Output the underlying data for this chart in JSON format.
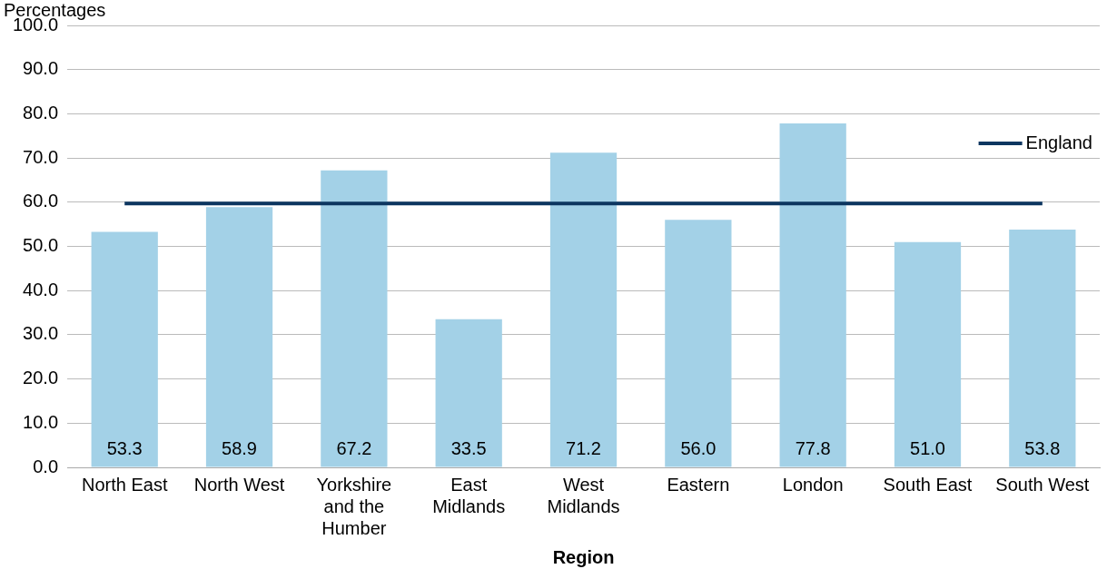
{
  "chart_data": {
    "type": "bar",
    "xlabel": "Region",
    "ylabel": "Percentages",
    "categories": [
      "North East",
      "North West",
      "Yorkshire and the Humber",
      "East Midlands",
      "West Midlands",
      "Eastern",
      "London",
      "South East",
      "South West"
    ],
    "series": [
      {
        "color": "#a3d1e7",
        "values": [
          53.3,
          58.9,
          67.2,
          33.5,
          71.2,
          56.0,
          77.8,
          51.0,
          53.8
        ],
        "value_labels": [
          "53.3",
          "58.9",
          "67.2",
          "33.5",
          "71.2",
          "56.0",
          "77.8",
          "51.0",
          "53.8"
        ]
      },
      {
        "type": "line",
        "name": "England",
        "color": "#0d3660",
        "values": [
          59.7,
          59.7,
          59.7,
          59.7,
          59.7,
          59.7,
          59.7,
          59.7,
          59.7
        ]
      }
    ],
    "ylim": [
      0,
      100
    ],
    "yticks": [
      {
        "value": 0,
        "label": "0.0"
      },
      {
        "value": 10,
        "label": "10.0"
      },
      {
        "value": 20,
        "label": "20.0"
      },
      {
        "value": 30,
        "label": "30.0"
      },
      {
        "value": 40,
        "label": "40.0"
      },
      {
        "value": 50,
        "label": "50.0"
      },
      {
        "value": 60,
        "label": "60.0"
      },
      {
        "value": 70,
        "label": "70.0"
      },
      {
        "value": 80,
        "label": "80.0"
      },
      {
        "value": 90,
        "label": "90.0"
      },
      {
        "value": 100,
        "label": "100.0"
      }
    ],
    "grid": "y",
    "legend": "top right",
    "marker": "none",
    "line_style": "solid"
  }
}
